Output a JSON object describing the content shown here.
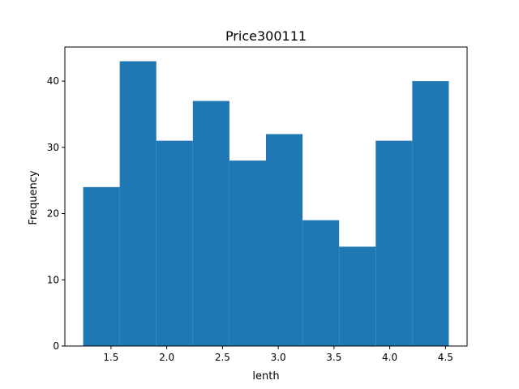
{
  "chart_data": {
    "type": "bar",
    "title": "Price300111",
    "xlabel": "lenth",
    "ylabel": "Frequency",
    "bin_edges": [
      1.25,
      1.578,
      1.906,
      2.234,
      2.562,
      2.89,
      3.218,
      3.546,
      3.874,
      4.202,
      4.53
    ],
    "values": [
      24,
      43,
      31,
      37,
      28,
      32,
      19,
      15,
      31,
      40
    ],
    "xlim": [
      1.086,
      4.694
    ],
    "ylim": [
      0,
      45.15
    ],
    "xticks": [
      1.5,
      2.0,
      2.5,
      3.0,
      3.5,
      4.0,
      4.5
    ],
    "xtick_labels": [
      "1.5",
      "2.0",
      "2.5",
      "3.0",
      "3.5",
      "4.0",
      "4.5"
    ],
    "yticks": [
      0,
      10,
      20,
      30,
      40
    ],
    "ytick_labels": [
      "0",
      "10",
      "20",
      "30",
      "40"
    ],
    "grid": false,
    "colors": {
      "bar": "#1f77b4",
      "axis": "#000000"
    }
  }
}
